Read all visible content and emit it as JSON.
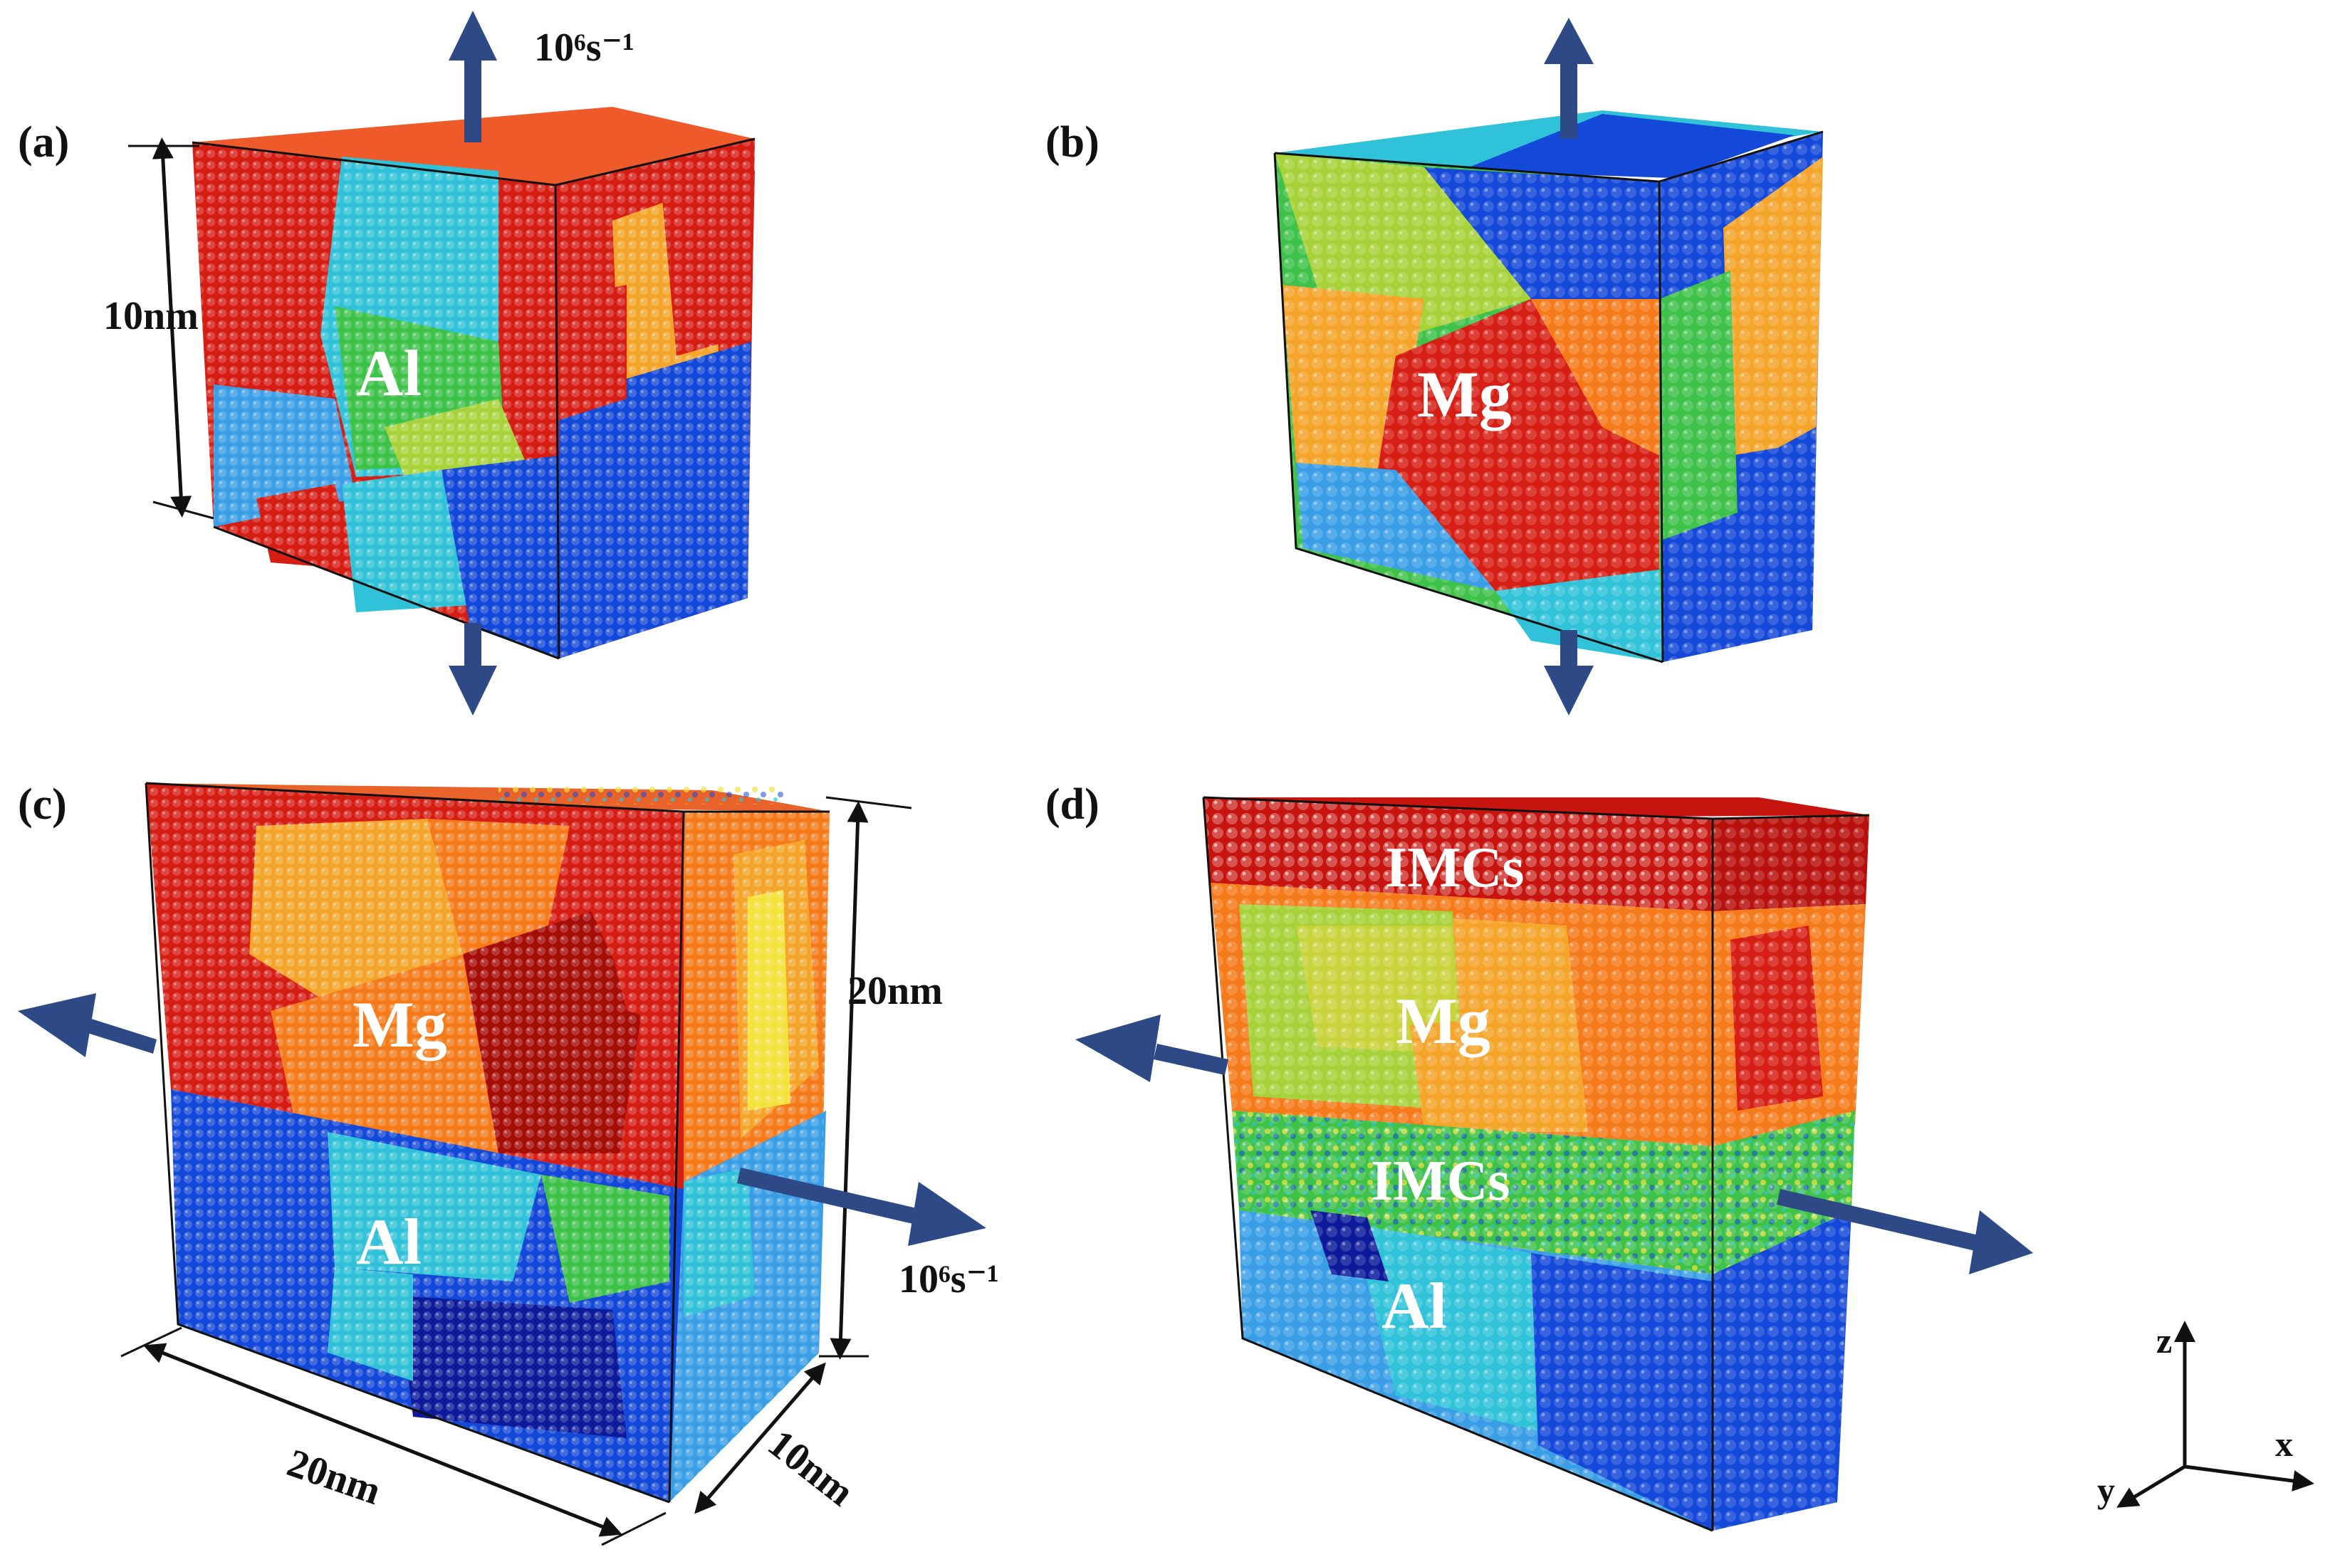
{
  "panels": {
    "a": {
      "label": "(a)",
      "material": "Al",
      "dimension": "10nm",
      "strain_rate": "10⁶s⁻¹"
    },
    "b": {
      "label": "(b)",
      "material": "Mg"
    },
    "c": {
      "label": "(c)",
      "top_material": "Mg",
      "bottom_material": "Al",
      "height_dim": "20nm",
      "width_dim": "20nm",
      "depth_dim": "10nm",
      "strain_rate": "10⁶s⁻¹"
    },
    "d": {
      "label": "(d)",
      "top_layer": "IMCs",
      "middle_material": "Mg",
      "interface_layer": "IMCs",
      "bottom_material": "Al"
    }
  },
  "axes": {
    "z": "z",
    "x": "x",
    "y": "y"
  },
  "colors": {
    "arrow": "#2d4a86",
    "red": "#d61e14",
    "dark_red": "#a80c08",
    "orange": "#f47a1a",
    "yellow_orange": "#f4a52a",
    "yellow_green": "#a8d23a",
    "green": "#3fc24a",
    "cyan": "#2fc2d8",
    "light_blue": "#3a9ee6",
    "blue": "#1448d8",
    "dark_blue": "#0c1a9a"
  }
}
